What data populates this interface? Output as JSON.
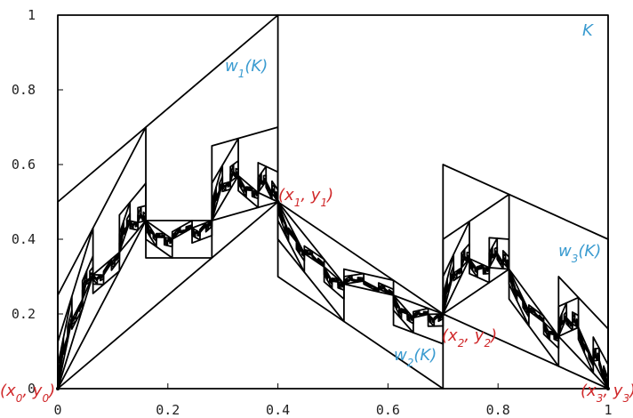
{
  "chart_data": {
    "type": "fractal-interpolation",
    "points": {
      "x": [
        0,
        0.4,
        0.7,
        1
      ],
      "y": [
        0,
        0.5,
        0.2,
        0
      ]
    },
    "scaling": [
      0.5,
      -0.2,
      0.4
    ],
    "xlim": [
      0,
      1
    ],
    "ylim": [
      0,
      1
    ],
    "xticks": [
      0,
      0.2,
      0.4,
      0.6,
      0.8,
      1
    ],
    "yticks": [
      0,
      0.2,
      0.4,
      0.6,
      0.8,
      1
    ],
    "annotations": [
      {
        "parts": [
          "K"
        ],
        "color": "#3a9bd0"
      },
      {
        "parts": [
          "w",
          "1",
          "(K)"
        ],
        "color": "#3a9bd0"
      },
      {
        "parts": [
          "w",
          "2",
          "(K)"
        ],
        "color": "#3a9bd0"
      },
      {
        "parts": [
          "w",
          "3",
          "(K)"
        ],
        "color": "#3a9bd0"
      },
      {
        "parts": [
          "(x",
          "0",
          ", y",
          "0",
          ")"
        ],
        "color": "#d0282a"
      },
      {
        "parts": [
          "(x",
          "1",
          ", y",
          "1",
          ")"
        ],
        "color": "#d0282a"
      },
      {
        "parts": [
          "(x",
          "2",
          ", y",
          "2",
          ")"
        ],
        "color": "#d0282a"
      },
      {
        "parts": [
          "(x",
          "3",
          ", y",
          "3",
          ")"
        ],
        "color": "#d0282a"
      }
    ]
  }
}
